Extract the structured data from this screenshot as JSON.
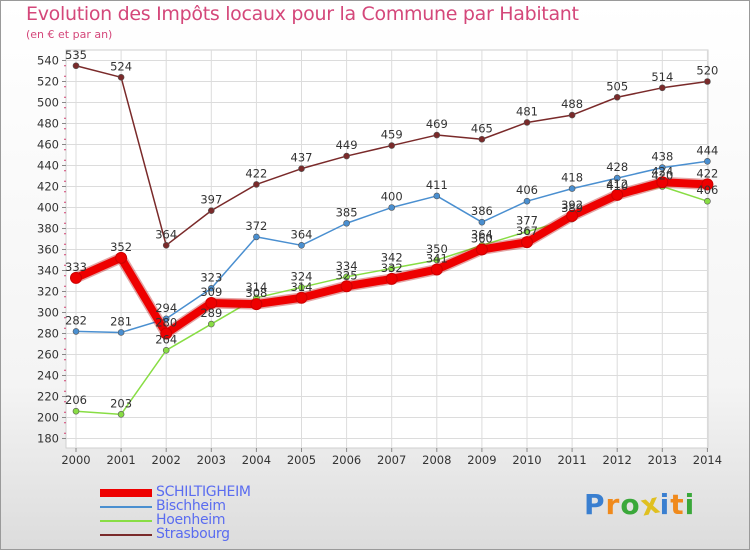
{
  "header": {
    "title": "Evolution des Impôts locaux pour la Commune par Habitant",
    "subtitle": "(en € et par an)"
  },
  "chart_data": {
    "type": "line",
    "title": "Evolution des Impôts locaux pour la Commune par Habitant",
    "subtitle": "(en € et par an)",
    "xlabel": "",
    "ylabel": "",
    "categories": [
      "2000",
      "2001",
      "2002",
      "2003",
      "2004",
      "2005",
      "2006",
      "2007",
      "2008",
      "2009",
      "2010",
      "2011",
      "2012",
      "2013",
      "2014"
    ],
    "ylim": [
      180,
      540
    ],
    "yticks": [
      180,
      200,
      220,
      240,
      260,
      280,
      300,
      320,
      340,
      360,
      380,
      400,
      420,
      440,
      460,
      480,
      500,
      520,
      540
    ],
    "grid": true,
    "series": [
      {
        "name": "SCHILTIGHEIM",
        "color": "#ee0000",
        "values": [
          333,
          352,
          280,
          309,
          308,
          314,
          325,
          332,
          341,
          360,
          367,
          392,
          412,
          424,
          422
        ]
      },
      {
        "name": "Bischheim",
        "color": "#4a8fd0",
        "values": [
          282,
          281,
          294,
          323,
          372,
          364,
          385,
          400,
          411,
          386,
          406,
          418,
          428,
          438,
          444
        ]
      },
      {
        "name": "Hoenheim",
        "color": "#88dd44",
        "values": [
          206,
          203,
          264,
          289,
          314,
          324,
          334,
          342,
          350,
          364,
          377,
          389,
          410,
          420,
          406
        ]
      },
      {
        "name": "Strasbourg",
        "color": "#7a2a2a",
        "values": [
          535,
          524,
          364,
          397,
          422,
          437,
          449,
          459,
          469,
          465,
          481,
          488,
          505,
          514,
          520
        ]
      }
    ],
    "legend": "bottom-left"
  },
  "logo": {
    "letters": [
      "P",
      "r",
      "o",
      "x",
      "i",
      "t",
      "i"
    ],
    "colors": [
      "#3a7fd0",
      "#f08a1c",
      "#3aa83a",
      "#e0c020",
      "#3a7fd0",
      "#f08a1c",
      "#3aa83a"
    ]
  }
}
